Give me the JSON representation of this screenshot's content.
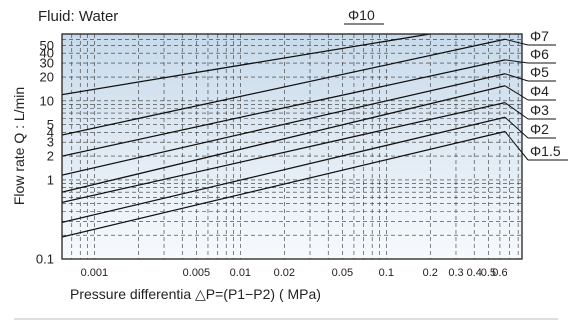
{
  "chart_data": {
    "type": "line",
    "title": "Fluid: Water",
    "xlabel": "Pressure differentia  △P=(P1−P2)  ( MPa)",
    "ylabel": "Flow rate Q : L/min",
    "x_scale": "log",
    "y_scale": "log",
    "xlim": [
      0.0006,
      0.85
    ],
    "ylim": [
      0.1,
      70
    ],
    "grid": true,
    "x_ticks": [
      {
        "value": 0.001,
        "label": "0.001"
      },
      {
        "value": 0.005,
        "label": "0.005"
      },
      {
        "value": 0.01,
        "label": "0.01"
      },
      {
        "value": 0.02,
        "label": "0.02"
      },
      {
        "value": 0.05,
        "label": "0.05"
      },
      {
        "value": 0.1,
        "label": "0.1"
      },
      {
        "value": 0.2,
        "label": "0.2"
      },
      {
        "value": 0.3,
        "label": "0.3"
      },
      {
        "value": 0.4,
        "label": "0.4"
      },
      {
        "value": 0.5,
        "label": "0.5"
      },
      {
        "value": 0.6,
        "label": "0.6"
      }
    ],
    "y_ticks": [
      {
        "value": 0.1,
        "label": "0.1"
      },
      {
        "value": 1,
        "label": "1"
      },
      {
        "value": 2,
        "label": "2"
      },
      {
        "value": 3,
        "label": "3"
      },
      {
        "value": 4,
        "label": "4"
      },
      {
        "value": 5,
        "label": "5"
      },
      {
        "value": 10,
        "label": "10"
      },
      {
        "value": 20,
        "label": "20"
      },
      {
        "value": 30,
        "label": "30"
      },
      {
        "value": 40,
        "label": "40"
      },
      {
        "value": 50,
        "label": "50"
      }
    ],
    "series": [
      {
        "name": "Φ10",
        "x": [
          0.0006,
          0.25
        ],
        "y": [
          12,
          75
        ]
      },
      {
        "name": "Φ7",
        "x": [
          0.0006,
          0.65
        ],
        "y": [
          3.7,
          60
        ]
      },
      {
        "name": "Φ6",
        "x": [
          0.0006,
          0.65
        ],
        "y": [
          2.0,
          33
        ]
      },
      {
        "name": "Φ5",
        "x": [
          0.0006,
          0.65
        ],
        "y": [
          1.15,
          22
        ]
      },
      {
        "name": "Φ4",
        "x": [
          0.0006,
          0.65
        ],
        "y": [
          0.7,
          15.5
        ]
      },
      {
        "name": "Φ3",
        "x": [
          0.0006,
          0.65
        ],
        "y": [
          0.52,
          9.5
        ]
      },
      {
        "name": "Φ2",
        "x": [
          0.0006,
          0.65
        ],
        "y": [
          0.29,
          6.2
        ]
      },
      {
        "name": "Φ1.5",
        "x": [
          0.0006,
          0.65
        ],
        "y": [
          0.19,
          4.1
        ]
      }
    ]
  },
  "colors": {
    "plot_bg_top": "#c8daea",
    "plot_bg_bottom": "#f7fafd",
    "line": "#111111",
    "grid": "#333333"
  }
}
